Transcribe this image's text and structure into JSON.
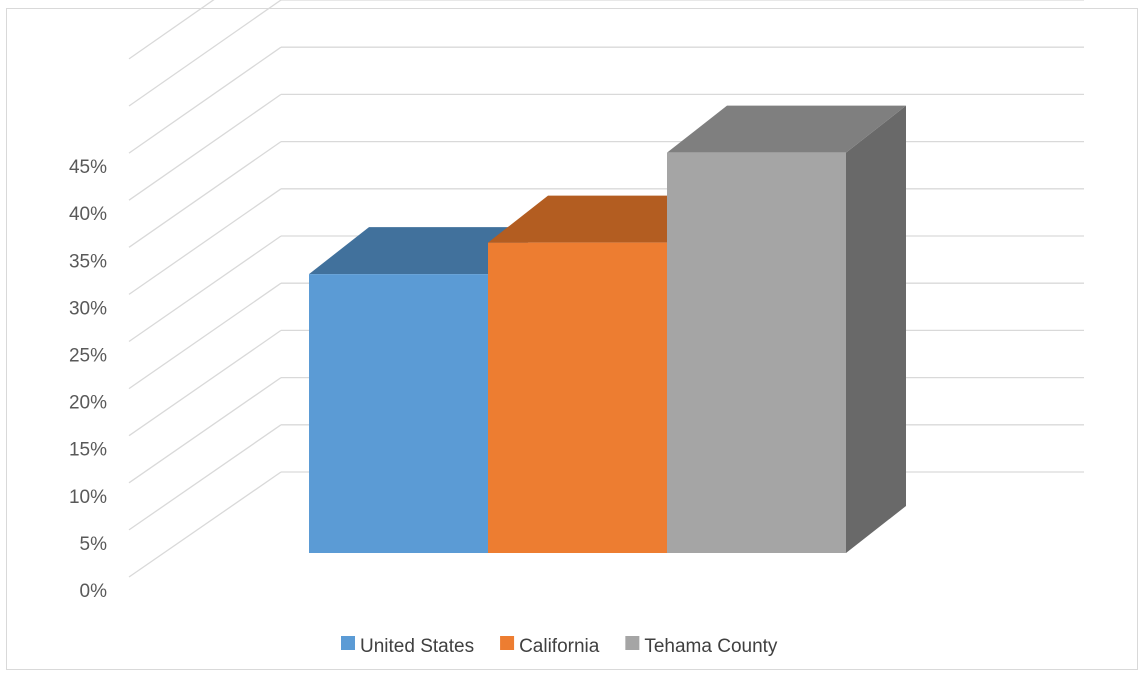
{
  "chart_data": {
    "type": "bar",
    "style": "3d-column",
    "categories": [
      "United States",
      "California",
      "Tehama County"
    ],
    "series": [
      {
        "name": "United States",
        "value": 0.31,
        "colors": {
          "front": "#5b9bd5",
          "top": "#41719c"
        }
      },
      {
        "name": "California",
        "value": 0.345,
        "colors": {
          "front": "#ed7d31",
          "top": "#b35d21"
        }
      },
      {
        "name": "Tehama County",
        "value": 0.445,
        "colors": {
          "front": "#a5a5a5",
          "top": "#7f7f7f",
          "side": "#696969"
        }
      }
    ],
    "y_ticks": [
      "0%",
      "5%",
      "10%",
      "15%",
      "20%",
      "25%",
      "30%",
      "35%",
      "40%",
      "45%"
    ],
    "ylim": [
      0,
      0.45
    ],
    "title": "",
    "xlabel": "",
    "ylabel": "",
    "grid": true,
    "legend_position": "bottom",
    "gridline_color": "#d9d9d9",
    "axis_text_color": "#595959"
  }
}
